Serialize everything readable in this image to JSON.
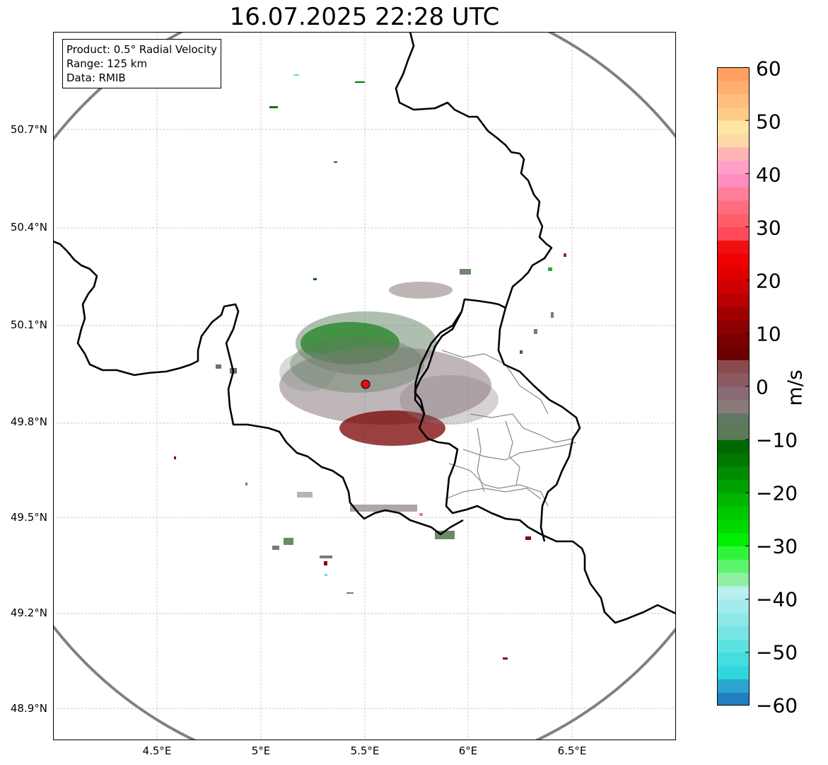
{
  "title": "16.07.2025 22:28 UTC",
  "info": {
    "product": "Product: 0.5° Radial Velocity",
    "range": "Range: 125 km",
    "source": "Data: RMIB"
  },
  "lat_labels": [
    "50.7°N",
    "50.4°N",
    "50.1°N",
    "49.8°N",
    "49.5°N",
    "49.2°N",
    "48.9°N"
  ],
  "lon_labels": [
    "4.5°E",
    "5°E",
    "5.5°E",
    "6°E",
    "6.5°E"
  ],
  "colorbar": {
    "unit": "m/s",
    "ticks": [
      "60",
      "50",
      "40",
      "30",
      "20",
      "10",
      "0",
      "−10",
      "−20",
      "−30",
      "−40",
      "−50",
      "−60"
    ],
    "range": [
      -60,
      60
    ],
    "colors": [
      "#1f7fc0",
      "#2aa6d0",
      "#2fd7dc",
      "#44dde0",
      "#5de2e2",
      "#77e5e5",
      "#8ee8e8",
      "#a4ebeb",
      "#b8efef",
      "#8ef0a0",
      "#5df56e",
      "#2ef53a",
      "#00ee00",
      "#00d800",
      "#00c800",
      "#00b400",
      "#00a000",
      "#008c00",
      "#007800",
      "#006a00",
      "#5a7a58",
      "#607860",
      "#8a7a7a",
      "#8a6a75",
      "#8a5a60",
      "#8a4a50",
      "#6a0000",
      "#7a0000",
      "#8c0000",
      "#a00000",
      "#b80000",
      "#cc0000",
      "#e00000",
      "#f00000",
      "#f01010",
      "#ff4a5a",
      "#ff5d6a",
      "#ff6e7e",
      "#ff7e98",
      "#ff8ec0",
      "#ffa0c8",
      "#ffb4b4",
      "#ffd8a8",
      "#ffe6a0",
      "#ffcc88",
      "#ffbe80",
      "#ffae70",
      "#ffa060"
    ]
  },
  "map": {
    "radar_site": "radar-site",
    "lat_range": [
      48.8,
      50.99
    ],
    "lon_range": [
      4.0,
      7.0
    ]
  }
}
